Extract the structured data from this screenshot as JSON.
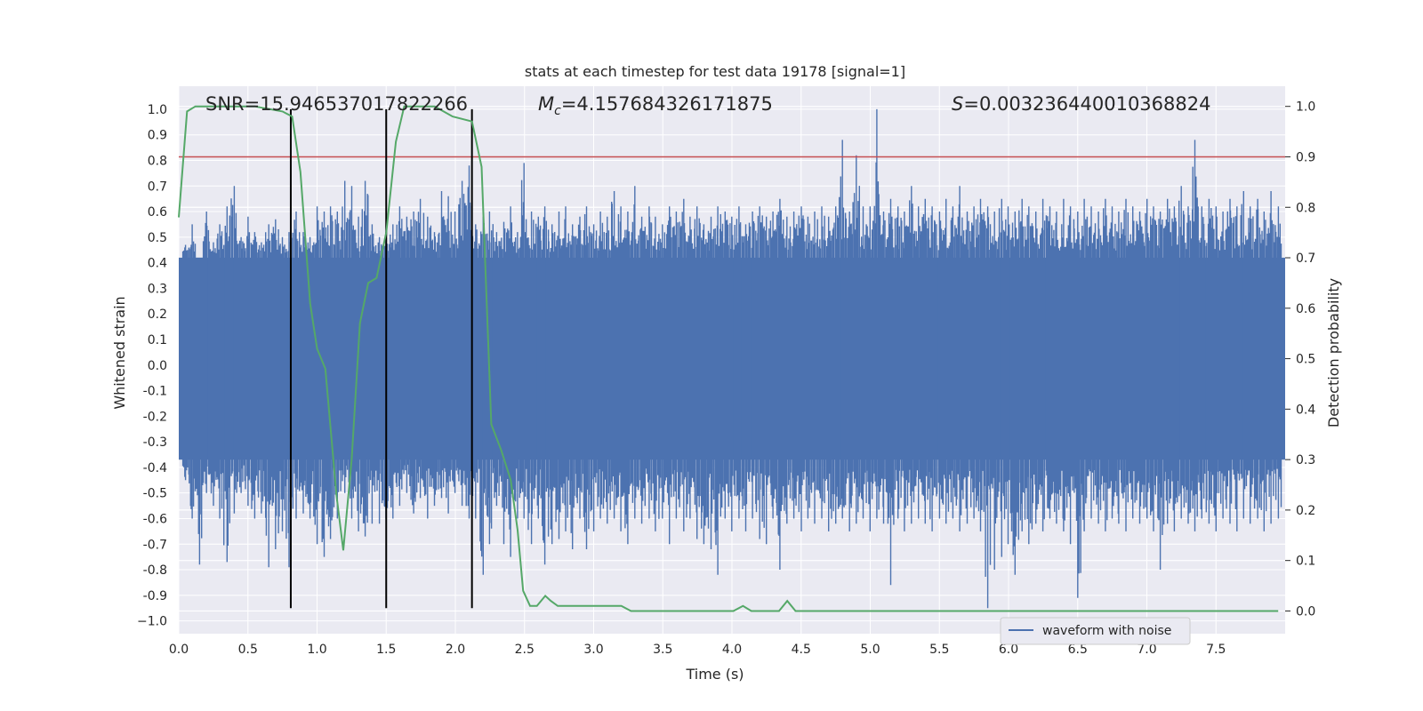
{
  "chart_data": {
    "type": "line",
    "title": "stats at each timestep for test data 19178 [signal=1]",
    "xlabel": "Time (s)",
    "ylabel": "Whitened strain",
    "y2label": "Detection probability",
    "xlim": [
      0,
      8
    ],
    "ylim": [
      -1.05,
      1.09
    ],
    "y2lim": [
      -0.045,
      1.04
    ],
    "x_ticks": [
      0.0,
      0.5,
      1.0,
      1.5,
      2.0,
      2.5,
      3.0,
      3.5,
      4.0,
      4.5,
      5.0,
      5.5,
      6.0,
      6.5,
      7.0,
      7.5
    ],
    "x_tick_labels": [
      "0.0",
      "0.5",
      "1.0",
      "1.5",
      "2.0",
      "2.5",
      "3.0",
      "3.5",
      "4.0",
      "4.5",
      "5.0",
      "5.5",
      "6.0",
      "6.5",
      "7.0",
      "7.5"
    ],
    "y_ticks": [
      1.0,
      0.9,
      0.8,
      0.7,
      0.6,
      0.5,
      0.4,
      0.3,
      0.2,
      0.1,
      0.0,
      -0.1,
      -0.2,
      -0.3,
      -0.4,
      -0.5,
      -0.6,
      -0.7,
      -0.8,
      -0.9,
      -1.0
    ],
    "y_tick_labels": [
      "1.0",
      "0.9",
      "0.8",
      "0.7",
      "0.6",
      "0.5",
      "0.4",
      "0.3",
      "0.2",
      "0.1",
      "0.0",
      "-0.1",
      "-0.2",
      "-0.3",
      "-0.4",
      "-0.5",
      "-0.6",
      "-0.7",
      "-0.8",
      "-0.9",
      "−1.0"
    ],
    "y2_ticks": [
      1.0,
      0.9,
      0.8,
      0.7,
      0.6,
      0.5,
      0.4,
      0.3,
      0.2,
      0.1,
      0.0
    ],
    "y2_tick_labels": [
      "1.0",
      "0.9",
      "0.8",
      "0.7",
      "0.6",
      "0.5",
      "0.4",
      "0.3",
      "0.2",
      "0.1",
      "0.0"
    ],
    "grid": true,
    "legend": {
      "entries": [
        "waveform with noise"
      ],
      "placement": "lower-center-right"
    },
    "annotations": {
      "snr": "SNR=15.946537017822266",
      "mc_symbol": "M",
      "mc_sub": "c",
      "mc_value": "=4.157684326171875",
      "s_symbol": "S",
      "s_value": "=0.003236440010368824"
    },
    "threshold": {
      "axis": "y2",
      "value": 0.9,
      "color": "#c44e52"
    },
    "vertical_lines": [
      0.81,
      1.5,
      2.12
    ],
    "vertical_line_range": [
      -0.95,
      1.0
    ],
    "waveform": {
      "name": "waveform with noise",
      "color": "#4c72b0",
      "core_band": [
        -0.37,
        0.42
      ],
      "spikes": [
        [
          0.05,
          0.47,
          -0.45
        ],
        [
          0.1,
          0.55,
          -0.6
        ],
        [
          0.15,
          0.42,
          -0.78
        ],
        [
          0.2,
          0.6,
          -0.5
        ],
        [
          0.25,
          0.48,
          -0.55
        ],
        [
          0.3,
          0.55,
          -0.6
        ],
        [
          0.35,
          0.62,
          -0.77
        ],
        [
          0.4,
          0.7,
          -0.58
        ],
        [
          0.45,
          0.5,
          -0.5
        ],
        [
          0.5,
          0.58,
          -0.55
        ],
        [
          0.55,
          0.52,
          -0.6
        ],
        [
          0.6,
          0.48,
          -0.58
        ],
        [
          0.65,
          0.55,
          -0.79
        ],
        [
          0.7,
          0.57,
          -0.72
        ],
        [
          0.75,
          0.5,
          -0.65
        ],
        [
          0.8,
          0.52,
          -0.79
        ],
        [
          0.85,
          0.6,
          -0.6
        ],
        [
          0.9,
          0.52,
          -0.58
        ],
        [
          0.95,
          0.5,
          -0.6
        ],
        [
          1.0,
          0.62,
          -0.7
        ],
        [
          1.05,
          0.6,
          -0.75
        ],
        [
          1.1,
          0.62,
          -0.68
        ],
        [
          1.15,
          0.6,
          -0.6
        ],
        [
          1.2,
          0.72,
          -0.5
        ],
        [
          1.25,
          0.7,
          -0.6
        ],
        [
          1.3,
          0.58,
          -0.65
        ],
        [
          1.35,
          0.72,
          -0.67
        ],
        [
          1.4,
          0.55,
          -0.62
        ],
        [
          1.45,
          0.5,
          -0.62
        ],
        [
          1.5,
          0.52,
          -0.6
        ],
        [
          1.55,
          0.55,
          -0.6
        ],
        [
          1.6,
          0.62,
          -0.55
        ],
        [
          1.65,
          0.58,
          -0.5
        ],
        [
          1.7,
          0.6,
          -0.58
        ],
        [
          1.75,
          0.65,
          -0.52
        ],
        [
          1.8,
          0.58,
          -0.6
        ],
        [
          1.85,
          0.52,
          -0.55
        ],
        [
          1.9,
          0.68,
          -0.52
        ],
        [
          1.95,
          0.66,
          -0.58
        ],
        [
          2.0,
          0.6,
          -0.5
        ],
        [
          2.05,
          0.72,
          -0.55
        ],
        [
          2.1,
          0.78,
          -0.6
        ],
        [
          2.15,
          0.55,
          -0.6
        ],
        [
          2.2,
          0.58,
          -0.82
        ],
        [
          2.25,
          0.6,
          -0.7
        ],
        [
          2.3,
          0.52,
          -0.55
        ],
        [
          2.35,
          0.56,
          -0.7
        ],
        [
          2.4,
          0.62,
          -0.75
        ],
        [
          2.45,
          0.52,
          -0.6
        ],
        [
          2.5,
          0.79,
          -0.6
        ],
        [
          2.55,
          0.6,
          -0.7
        ],
        [
          2.6,
          0.58,
          -0.6
        ],
        [
          2.65,
          0.62,
          -0.78
        ],
        [
          2.7,
          0.55,
          -0.7
        ],
        [
          2.75,
          0.6,
          -0.68
        ],
        [
          2.8,
          0.62,
          -0.65
        ],
        [
          2.85,
          0.55,
          -0.72
        ],
        [
          2.9,
          0.58,
          -0.6
        ],
        [
          2.95,
          0.62,
          -0.72
        ],
        [
          3.0,
          0.55,
          -0.65
        ],
        [
          3.05,
          0.6,
          -0.6
        ],
        [
          3.1,
          0.58,
          -0.62
        ],
        [
          3.15,
          0.68,
          -0.6
        ],
        [
          3.2,
          0.62,
          -0.65
        ],
        [
          3.25,
          0.6,
          -0.7
        ],
        [
          3.3,
          0.7,
          -0.6
        ],
        [
          3.35,
          0.58,
          -0.62
        ],
        [
          3.4,
          0.62,
          -0.6
        ],
        [
          3.45,
          0.58,
          -0.65
        ],
        [
          3.5,
          0.55,
          -0.6
        ],
        [
          3.55,
          0.62,
          -0.7
        ],
        [
          3.6,
          0.6,
          -0.6
        ],
        [
          3.65,
          0.65,
          -0.65
        ],
        [
          3.7,
          0.58,
          -0.6
        ],
        [
          3.75,
          0.62,
          -0.68
        ],
        [
          3.8,
          0.55,
          -0.7
        ],
        [
          3.85,
          0.58,
          -0.72
        ],
        [
          3.9,
          0.62,
          -0.82
        ],
        [
          3.95,
          0.6,
          -0.6
        ],
        [
          4.0,
          0.58,
          -0.65
        ],
        [
          4.05,
          0.62,
          -0.6
        ],
        [
          4.1,
          0.55,
          -0.65
        ],
        [
          4.15,
          0.6,
          -0.6
        ],
        [
          4.2,
          0.62,
          -0.68
        ],
        [
          4.25,
          0.58,
          -0.7
        ],
        [
          4.3,
          0.6,
          -0.6
        ],
        [
          4.35,
          0.65,
          -0.8
        ],
        [
          4.4,
          0.58,
          -0.62
        ],
        [
          4.45,
          0.6,
          -0.6
        ],
        [
          4.5,
          0.62,
          -0.65
        ],
        [
          4.55,
          0.58,
          -0.6
        ],
        [
          4.6,
          0.6,
          -0.62
        ],
        [
          4.65,
          0.62,
          -0.6
        ],
        [
          4.7,
          0.58,
          -0.65
        ],
        [
          4.75,
          0.62,
          -0.62
        ],
        [
          4.8,
          0.88,
          -0.6
        ],
        [
          4.85,
          0.6,
          -0.65
        ],
        [
          4.9,
          0.82,
          -0.62
        ],
        [
          4.95,
          0.62,
          -0.6
        ],
        [
          5.0,
          0.62,
          -0.65
        ],
        [
          5.05,
          1.0,
          -0.6
        ],
        [
          5.1,
          0.6,
          -0.62
        ],
        [
          5.15,
          0.65,
          -0.86
        ],
        [
          5.2,
          0.62,
          -0.6
        ],
        [
          5.25,
          0.6,
          -0.65
        ],
        [
          5.3,
          0.7,
          -0.62
        ],
        [
          5.35,
          0.62,
          -0.6
        ],
        [
          5.4,
          0.65,
          -0.62
        ],
        [
          5.45,
          0.62,
          -0.65
        ],
        [
          5.5,
          0.6,
          -0.6
        ],
        [
          5.55,
          0.65,
          -0.62
        ],
        [
          5.6,
          0.62,
          -0.6
        ],
        [
          5.65,
          0.7,
          -0.65
        ],
        [
          5.7,
          0.6,
          -0.62
        ],
        [
          5.75,
          0.62,
          -0.6
        ],
        [
          5.8,
          0.65,
          -0.65
        ],
        [
          5.85,
          0.62,
          -0.95
        ],
        [
          5.9,
          0.6,
          -0.8
        ],
        [
          5.95,
          0.65,
          -0.75
        ],
        [
          6.0,
          0.62,
          -0.7
        ],
        [
          6.05,
          0.6,
          -0.82
        ],
        [
          6.1,
          0.65,
          -0.65
        ],
        [
          6.15,
          0.62,
          -0.7
        ],
        [
          6.2,
          0.6,
          -0.62
        ],
        [
          6.25,
          0.65,
          -0.65
        ],
        [
          6.3,
          0.62,
          -0.6
        ],
        [
          6.35,
          0.6,
          -0.62
        ],
        [
          6.4,
          0.65,
          -0.65
        ],
        [
          6.45,
          0.62,
          -0.7
        ],
        [
          6.5,
          0.6,
          -0.91
        ],
        [
          6.55,
          0.65,
          -0.65
        ],
        [
          6.6,
          0.62,
          -0.6
        ],
        [
          6.65,
          0.6,
          -0.62
        ],
        [
          6.7,
          0.65,
          -0.65
        ],
        [
          6.75,
          0.62,
          -0.6
        ],
        [
          6.8,
          0.6,
          -0.62
        ],
        [
          6.85,
          0.65,
          -0.65
        ],
        [
          6.9,
          0.62,
          -0.6
        ],
        [
          6.95,
          0.6,
          -0.62
        ],
        [
          7.0,
          0.65,
          -0.6
        ],
        [
          7.05,
          0.62,
          -0.65
        ],
        [
          7.1,
          0.6,
          -0.8
        ],
        [
          7.15,
          0.65,
          -0.62
        ],
        [
          7.2,
          0.62,
          -0.65
        ],
        [
          7.25,
          0.7,
          -0.6
        ],
        [
          7.3,
          0.62,
          -0.62
        ],
        [
          7.35,
          0.88,
          -0.65
        ],
        [
          7.4,
          0.62,
          -0.6
        ],
        [
          7.45,
          0.65,
          -0.62
        ],
        [
          7.5,
          0.62,
          -0.65
        ],
        [
          7.55,
          0.6,
          -0.6
        ],
        [
          7.6,
          0.65,
          -0.62
        ],
        [
          7.65,
          0.62,
          -0.65
        ],
        [
          7.7,
          0.68,
          -0.6
        ],
        [
          7.75,
          0.62,
          -0.62
        ],
        [
          7.8,
          0.65,
          -0.6
        ],
        [
          7.85,
          0.6,
          -0.65
        ],
        [
          7.9,
          0.68,
          -0.62
        ],
        [
          7.95,
          0.62,
          -0.6
        ]
      ]
    },
    "probability": {
      "name": "Detection probability",
      "color": "#55a868",
      "x": [
        0.0,
        0.06,
        0.12,
        0.55,
        0.75,
        0.82,
        0.88,
        0.95,
        1.0,
        1.06,
        1.14,
        1.19,
        1.25,
        1.31,
        1.37,
        1.43,
        1.5,
        1.57,
        1.63,
        1.7,
        1.85,
        1.98,
        2.12,
        2.19,
        2.26,
        2.33,
        2.4,
        2.45,
        2.49,
        2.54,
        2.59,
        2.65,
        2.69,
        2.74,
        2.8,
        2.87,
        2.94,
        3.0,
        3.07,
        3.14,
        3.2,
        3.27,
        3.34,
        3.4,
        3.47,
        3.6,
        3.74,
        3.86,
        3.94,
        4.01,
        4.08,
        4.14,
        4.21,
        4.28,
        4.34,
        4.4,
        4.46,
        4.53,
        4.6,
        4.67,
        4.8,
        4.93,
        5.0,
        5.13,
        5.27,
        5.4,
        5.53,
        5.67,
        5.8,
        5.93,
        6.07,
        6.2,
        6.33,
        6.47,
        6.6,
        6.73,
        6.87,
        7.0,
        7.13,
        7.27,
        7.4,
        7.53,
        7.67,
        7.8,
        7.95
      ],
      "y": [
        0.78,
        0.99,
        1.0,
        1.0,
        0.99,
        0.98,
        0.87,
        0.61,
        0.52,
        0.48,
        0.23,
        0.12,
        0.3,
        0.57,
        0.65,
        0.66,
        0.75,
        0.93,
        1.0,
        1.0,
        1.0,
        0.98,
        0.97,
        0.88,
        0.37,
        0.32,
        0.26,
        0.16,
        0.04,
        0.01,
        0.01,
        0.03,
        0.02,
        0.01,
        0.01,
        0.01,
        0.01,
        0.01,
        0.01,
        0.01,
        0.01,
        0.0,
        0.0,
        0.0,
        0.0,
        0.0,
        0.0,
        0.0,
        0.0,
        0.0,
        0.01,
        0.0,
        0.0,
        0.0,
        0.0,
        0.02,
        0.0,
        0.0,
        0.0,
        0.0,
        0.0,
        0.0,
        0.0,
        0.0,
        0.0,
        0.0,
        0.0,
        0.0,
        0.0,
        0.0,
        0.0,
        0.0,
        0.0,
        0.0,
        0.0,
        0.0,
        0.0,
        0.0,
        0.0,
        0.0,
        0.0,
        0.0,
        0.0,
        0.0,
        0.0
      ]
    },
    "colors": {
      "plot_bg": "#eaeaf2",
      "grid": "#ffffff",
      "vline": "#000000"
    }
  }
}
